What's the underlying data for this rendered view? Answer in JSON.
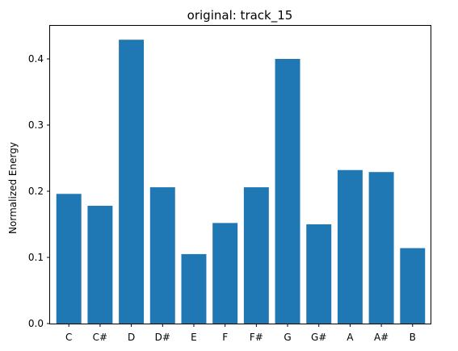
{
  "chart_data": {
    "type": "bar",
    "title": "original: track_15",
    "xlabel": "",
    "ylabel": "Normalized Energy",
    "categories": [
      "C",
      "C#",
      "D",
      "D#",
      "E",
      "F",
      "F#",
      "G",
      "G#",
      "A",
      "A#",
      "B"
    ],
    "values": [
      0.196,
      0.178,
      0.429,
      0.206,
      0.105,
      0.152,
      0.206,
      0.4,
      0.15,
      0.232,
      0.229,
      0.114
    ],
    "ylim": [
      0,
      0.45
    ],
    "yticks": [
      0.0,
      0.1,
      0.2,
      0.3,
      0.4
    ],
    "ytick_labels": [
      "0.0",
      "0.1",
      "0.2",
      "0.3",
      "0.4"
    ],
    "grid": false,
    "bar_color": "#1f77b4"
  }
}
